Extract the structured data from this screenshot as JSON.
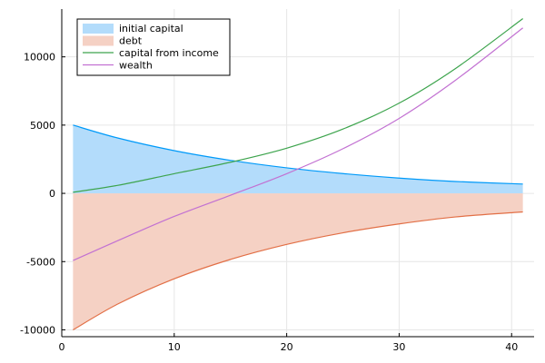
{
  "chart_data": {
    "type": "area",
    "title": "",
    "xlabel": "",
    "ylabel": "",
    "xlim": [
      0,
      42
    ],
    "ylim": [
      -10500,
      13500
    ],
    "x_ticks": [
      0,
      10,
      20,
      30,
      40
    ],
    "y_ticks": [
      -10000,
      -5000,
      0,
      5000,
      10000
    ],
    "grid": true,
    "legend_position": "top-left",
    "x": [
      1,
      5,
      10,
      15,
      20,
      25,
      30,
      35,
      41
    ],
    "series": [
      {
        "name": "initial capital",
        "kind": "band",
        "color": "#009af9",
        "fill_color": "#b3dcfb",
        "values": [
          5000,
          4050,
          3130,
          2420,
          1870,
          1450,
          1120,
          870,
          680
        ]
      },
      {
        "name": "debt",
        "kind": "band",
        "color": "#e26f46",
        "fill_color": "#f5d1c4",
        "values": [
          -10000,
          -8100,
          -6260,
          -4840,
          -3740,
          -2890,
          -2240,
          -1730,
          -1360
        ]
      },
      {
        "name": "capital from income",
        "kind": "line",
        "color": "#3da44d",
        "values": [
          80,
          590,
          1440,
          2280,
          3310,
          4710,
          6610,
          9140,
          12800
        ]
      },
      {
        "name": "wealth",
        "kind": "line",
        "color": "#c271d2",
        "values": [
          -4920,
          -3460,
          -1690,
          -140,
          1440,
          3270,
          5490,
          8280,
          12120
        ]
      }
    ]
  }
}
